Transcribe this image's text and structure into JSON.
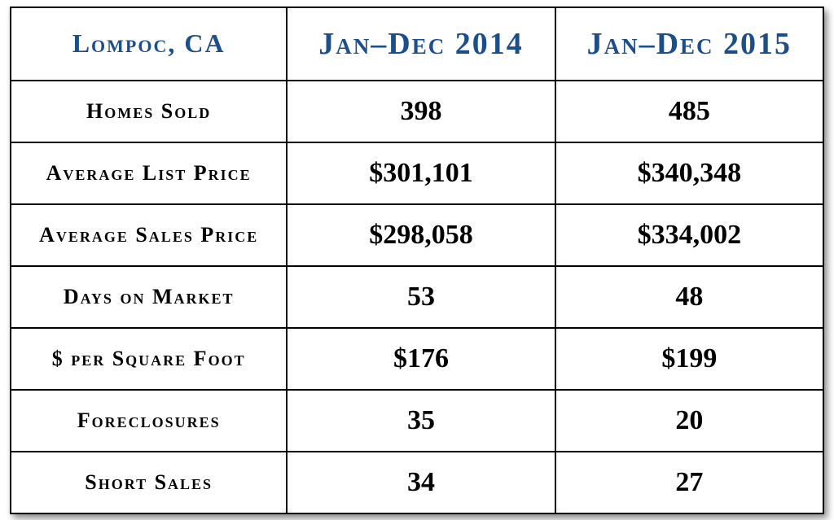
{
  "table": {
    "header": {
      "location": "Lompoc, CA",
      "period1": "Jan–Dec 2014",
      "period2": "Jan–Dec 2015"
    },
    "rows": [
      {
        "metric": "Homes Sold",
        "v1": "398",
        "v2": "485"
      },
      {
        "metric": "Average List Price",
        "v1": "$301,101",
        "v2": "$340,348"
      },
      {
        "metric": "Average Sales Price",
        "v1": "$298,058",
        "v2": "$334,002"
      },
      {
        "metric": "Days on Market",
        "v1": "53",
        "v2": "48"
      },
      {
        "metric": "$ per Square Foot",
        "v1": "$176",
        "v2": "$199"
      },
      {
        "metric": "Foreclosures",
        "v1": "35",
        "v2": "20"
      },
      {
        "metric": "Short Sales",
        "v1": "34",
        "v2": "27"
      }
    ],
    "style": {
      "type": "table",
      "columns": [
        "metric",
        "period1",
        "period2"
      ],
      "column_widths_pct": [
        34,
        33,
        33
      ],
      "header_text_color": "#1d4e8c",
      "header_location_fontsize": 32,
      "header_period_fontsize": 38,
      "body_metric_fontsize": 26,
      "body_value_fontsize": 34,
      "body_text_color": "#000000",
      "border_color": "#000000",
      "border_width": 2,
      "background_color": "#ffffff",
      "shadow_color": "rgba(0,0,0,0.45)",
      "font_family": "Georgia serif",
      "small_caps": true,
      "row_height_header": 90,
      "row_height_body": 76
    }
  }
}
